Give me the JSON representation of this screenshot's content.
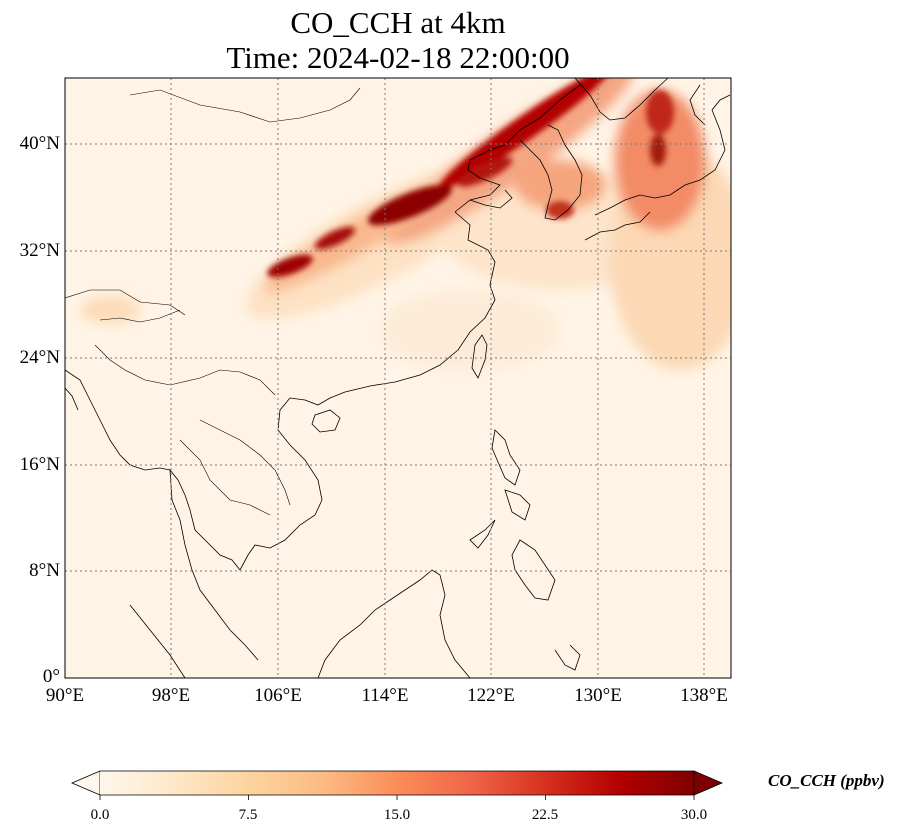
{
  "map": {
    "title_line1": "CO_CCH at 4km",
    "title_line2": "Time: 2024-02-18 22:00:00",
    "lon_labels": [
      "90°E",
      "98°E",
      "106°E",
      "114°E",
      "122°E",
      "130°E",
      "138°E"
    ],
    "lat_labels": [
      "0°",
      "8°N",
      "16°N",
      "24°N",
      "32°N",
      "40°N"
    ],
    "extent": {
      "lon_min": 90,
      "lon_max": 140,
      "lat_min": 0,
      "lat_max": 45
    },
    "gridlines": true,
    "colormap": "OrRd",
    "colors": {
      "low": "#fff7ec",
      "mid": "#fdbb84",
      "high": "#7f0000",
      "coast": "#000000",
      "grid": "#7a7a7a"
    }
  },
  "colorbar": {
    "label": "CO_CCH (ppbv)",
    "ticks": [
      "0.0",
      "7.5",
      "15.0",
      "22.5",
      "30.0"
    ],
    "min": 0,
    "max": 30,
    "extend": "both"
  }
}
